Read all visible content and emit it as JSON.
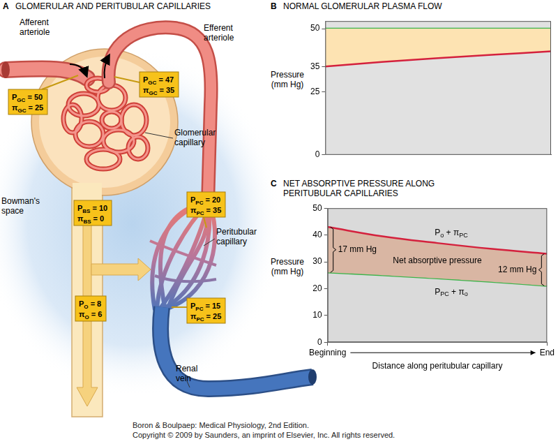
{
  "diagram": {
    "panel": "A",
    "title": "GLOMERULAR AND PERITUBULAR CAPILLARIES",
    "labels": [
      {
        "lines": [
          "Afferent",
          "arteriole"
        ]
      },
      {
        "lines": [
          "Efferent",
          "arteriole"
        ]
      },
      {
        "lines": [
          "Glomerular",
          "capillary"
        ]
      },
      {
        "lines": [
          "Bowman's",
          "space"
        ]
      },
      {
        "lines": [
          "Peritubular",
          "capillary"
        ]
      },
      {
        "lines": [
          "Renal",
          "vein"
        ]
      }
    ],
    "boxes": [
      {
        "lines": [
          [
            {
              "text": "P"
            },
            {
              "sub": "GC"
            },
            {
              "text": " = 50"
            }
          ],
          [
            {
              "text": "π"
            },
            {
              "sub": "GC"
            },
            {
              "text": " = 25"
            }
          ]
        ]
      },
      {
        "lines": [
          [
            {
              "text": "P"
            },
            {
              "sub": "GC"
            },
            {
              "text": " = 47"
            }
          ],
          [
            {
              "text": "π"
            },
            {
              "sub": "GC"
            },
            {
              "text": " = 35"
            }
          ]
        ]
      },
      {
        "lines": [
          [
            {
              "text": "P"
            },
            {
              "sub": "BS"
            },
            {
              "text": " = 10"
            }
          ],
          [
            {
              "text": "π"
            },
            {
              "sub": "BS"
            },
            {
              "text": " = 0"
            }
          ]
        ]
      },
      {
        "lines": [
          [
            {
              "text": "P"
            },
            {
              "sub": "PC"
            },
            {
              "text": " = 20"
            }
          ],
          [
            {
              "text": "π"
            },
            {
              "sub": "PC"
            },
            {
              "text": " = 35"
            }
          ]
        ]
      },
      {
        "lines": [
          [
            {
              "text": "P"
            },
            {
              "sub": "O"
            },
            {
              "text": " = 8"
            }
          ],
          [
            {
              "text": "π"
            },
            {
              "sub": "O"
            },
            {
              "text": " = 6"
            }
          ]
        ]
      },
      {
        "lines": [
          [
            {
              "text": "P"
            },
            {
              "sub": "PC"
            },
            {
              "text": " = 15"
            }
          ],
          [
            {
              "text": "π"
            },
            {
              "sub": "PC"
            },
            {
              "text": " = 25"
            }
          ]
        ]
      }
    ]
  },
  "chart_data": [
    {
      "panel": "B",
      "type": "line",
      "title": [
        "NORMAL GLOMERULAR PLASMA FLOW"
      ],
      "ylabel": [
        "Pressure",
        "(mm Hg)"
      ],
      "x": [
        0,
        0.25,
        0.5,
        0.75,
        1
      ],
      "xlim": [
        0,
        1
      ],
      "ylim": [
        0,
        53
      ],
      "yticks": [
        0,
        25,
        35,
        50
      ],
      "tick_labels": "y",
      "grid": false,
      "series": [
        {
          "color": "#d4213d",
          "values": [
            35,
            36.8,
            38.3,
            39.7,
            41
          ]
        },
        {
          "color": "#3cb44b",
          "values": [
            50,
            50,
            50,
            50,
            50
          ]
        }
      ]
    },
    {
      "panel": "C",
      "type": "line",
      "title": [
        "NET ABSORPTIVE PRESSURE ALONG",
        "PERITUBULAR CAPILLARIES"
      ],
      "ylabel": [
        "Pressure",
        "(mm Hg)"
      ],
      "xlabel": "Distance along peritubular capillary",
      "x": [
        0,
        0.25,
        0.5,
        0.75,
        1
      ],
      "xlim": [
        0,
        1
      ],
      "xticks": [
        {
          "value": 0,
          "label": "Beginning"
        },
        {
          "value": 1,
          "label": "End"
        }
      ],
      "ylim": [
        0,
        50
      ],
      "yticks": [
        0,
        10,
        20,
        30,
        40,
        50
      ],
      "grid": false,
      "series": [
        {
          "name": [
            {
              "text": "P"
            },
            {
              "sub": "o"
            },
            {
              "text": " + π"
            },
            {
              "sub": "PC"
            }
          ],
          "color": "#d4213d",
          "values": [
            43,
            39.5,
            37,
            34.8,
            33
          ]
        },
        {
          "name": [
            {
              "text": "P"
            },
            {
              "sub": "PC"
            },
            {
              "text": " + π"
            },
            {
              "sub": "o"
            }
          ],
          "color": "#3cb44b",
          "values": [
            26,
            25,
            23.8,
            22.5,
            21
          ]
        }
      ],
      "annotations": [
        "17 mm Hg",
        "Net absorptive pressure",
        "12 mm Hg"
      ]
    }
  ],
  "footer": [
    "Boron & Boulpaep: Medical Physiology, 2nd Edition.",
    "Copyright © 2009 by Saunders, an imprint of Elsevier, Inc. All rights reserved."
  ]
}
